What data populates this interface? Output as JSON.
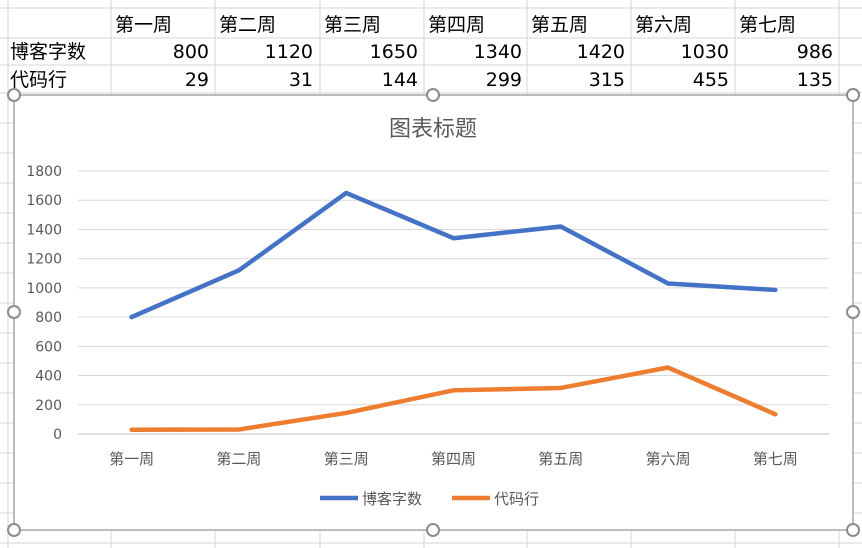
{
  "sheet": {
    "header_row": [
      "第一周",
      "第二周",
      "第三周",
      "第四周",
      "第五周",
      "第六周",
      "第七周"
    ],
    "rows": [
      {
        "label": "博客字数",
        "values": [
          "800",
          "1120",
          "1650",
          "1340",
          "1420",
          "1030",
          "986"
        ]
      },
      {
        "label": "代码行",
        "values": [
          "29",
          "31",
          "144",
          "299",
          "315",
          "455",
          "135"
        ]
      }
    ]
  },
  "chart_data": {
    "type": "line",
    "title": "图表标题",
    "categories": [
      "第一周",
      "第二周",
      "第三周",
      "第四周",
      "第五周",
      "第六周",
      "第七周"
    ],
    "series": [
      {
        "name": "博客字数",
        "color": "#4472C4",
        "values": [
          800,
          1120,
          1650,
          1340,
          1420,
          1030,
          986
        ]
      },
      {
        "name": "代码行",
        "color": "#ED7D31",
        "values": [
          29,
          31,
          144,
          299,
          315,
          455,
          135
        ]
      }
    ],
    "ylim": [
      0,
      1800
    ],
    "yticks": [
      "0",
      "200",
      "400",
      "600",
      "800",
      "1000",
      "1200",
      "1400",
      "1600",
      "1800"
    ],
    "grid": true,
    "legend": "bottom",
    "xlabel": "",
    "ylabel": ""
  }
}
